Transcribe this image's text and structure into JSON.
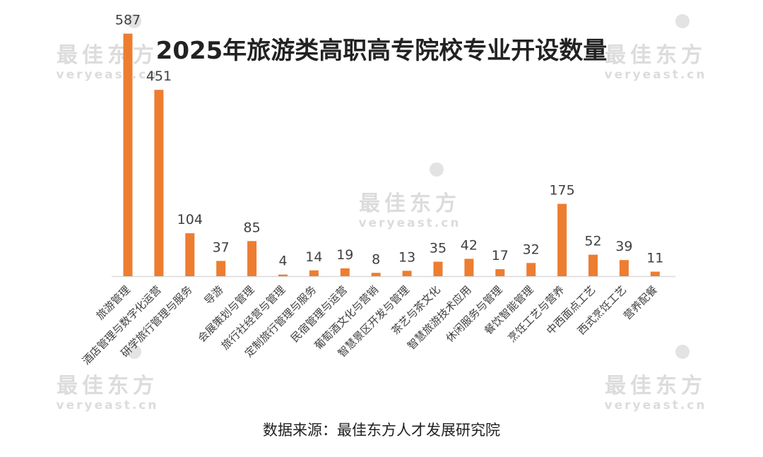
{
  "watermark": {
    "logo_text": "最佳东方",
    "url_text": "veryeast.cn"
  },
  "source": "数据来源：最佳东方人才发展研究院",
  "colors": {
    "bar": "#ED7D31",
    "axis": "#D9D9D9",
    "value_label": "#404040",
    "category_label": "#404040"
  },
  "chart_data": {
    "type": "bar",
    "title": "2025年旅游类高职高专院校专业开设数量",
    "xlabel": "",
    "ylabel": "",
    "ylim": [
      0,
      600
    ],
    "grid": false,
    "legend": "none",
    "categories": [
      "旅游管理",
      "酒店管理与数字化运营",
      "研学旅行管理与服务",
      "导游",
      "会展策划与管理",
      "旅行社经营与管理",
      "定制旅行管理与服务",
      "民宿管理与运营",
      "葡萄酒文化与营销",
      "智慧景区开发与管理",
      "茶艺与茶文化",
      "智慧旅游技术应用",
      "休闲服务与管理",
      "餐饮智能管理",
      "烹饪工艺与营养",
      "中西面点工艺",
      "西式烹饪工艺",
      "营养配餐"
    ],
    "values": [
      587,
      451,
      104,
      37,
      85,
      4,
      14,
      19,
      8,
      13,
      35,
      42,
      17,
      32,
      175,
      52,
      39,
      11
    ]
  }
}
